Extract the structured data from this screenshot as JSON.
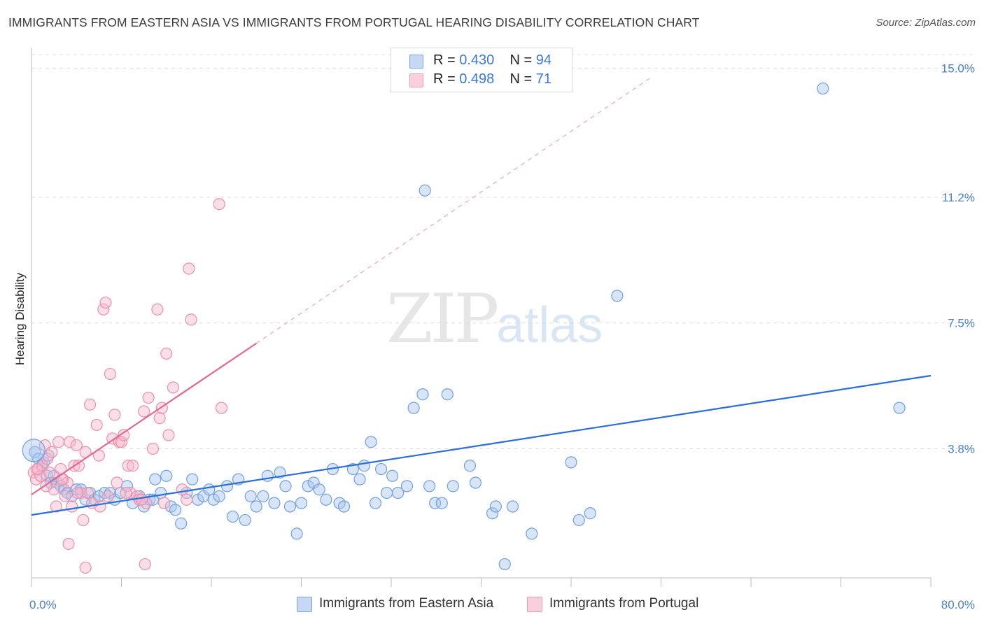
{
  "title": "IMMIGRANTS FROM EASTERN ASIA VS IMMIGRANTS FROM PORTUGAL HEARING DISABILITY CORRELATION CHART",
  "source": "Source: ZipAtlas.com",
  "watermark": {
    "zip": "ZIP",
    "atlas": "atlas"
  },
  "legend_top": [
    {
      "r_label": "R =",
      "r_value": "0.430",
      "n_label": "N =",
      "n_value": "94",
      "color": "#a8c6f0"
    },
    {
      "r_label": "R =",
      "r_value": "0.498",
      "n_label": "N =",
      "n_value": "71",
      "color": "#f6b9cb"
    }
  ],
  "chart_data": {
    "type": "scatter",
    "title": "IMMIGRANTS FROM EASTERN ASIA VS IMMIGRANTS FROM PORTUGAL HEARING DISABILITY CORRELATION CHART",
    "xlabel": "",
    "ylabel": "Hearing Disability",
    "xlim": [
      0,
      80
    ],
    "ylim": [
      0,
      15.4
    ],
    "x_tick_labels": [
      "0.0%",
      "80.0%"
    ],
    "y_ticks": [
      3.8,
      7.5,
      11.2,
      15.0
    ],
    "y_tick_labels": [
      "3.8%",
      "7.5%",
      "11.2%",
      "15.0%"
    ],
    "grid": true,
    "legend": "bottom-center",
    "series": [
      {
        "name": "Immigrants from Eastern Asia",
        "color": "#6fa0e0",
        "fill": "#a8c6f0",
        "trend": {
          "x": [
            0,
            80
          ],
          "y": [
            1.85,
            5.95
          ],
          "color": "#2a6fd6"
        },
        "points": [
          [
            0.3,
            3.7
          ],
          [
            0.6,
            3.5
          ],
          [
            0.9,
            3.3
          ],
          [
            1.1,
            3.4
          ],
          [
            1.4,
            3.0
          ],
          [
            1.7,
            2.8
          ],
          [
            2.0,
            3.0
          ],
          [
            2.3,
            2.8
          ],
          [
            2.6,
            2.7
          ],
          [
            2.9,
            2.6
          ],
          [
            3.2,
            2.5
          ],
          [
            3.6,
            2.4
          ],
          [
            4.0,
            2.6
          ],
          [
            4.4,
            2.6
          ],
          [
            4.8,
            2.3
          ],
          [
            5.2,
            2.5
          ],
          [
            5.6,
            2.3
          ],
          [
            6.0,
            2.4
          ],
          [
            6.5,
            2.5
          ],
          [
            7.0,
            2.5
          ],
          [
            7.4,
            2.3
          ],
          [
            7.9,
            2.5
          ],
          [
            8.5,
            2.7
          ],
          [
            9.0,
            2.2
          ],
          [
            9.6,
            2.4
          ],
          [
            10.0,
            2.1
          ],
          [
            10.5,
            2.3
          ],
          [
            11.0,
            2.9
          ],
          [
            11.5,
            2.5
          ],
          [
            12.0,
            3.0
          ],
          [
            12.4,
            2.1
          ],
          [
            12.8,
            2.0
          ],
          [
            13.3,
            1.6
          ],
          [
            13.8,
            2.5
          ],
          [
            14.3,
            2.9
          ],
          [
            14.8,
            2.3
          ],
          [
            15.3,
            2.4
          ],
          [
            15.8,
            2.6
          ],
          [
            16.2,
            2.3
          ],
          [
            16.7,
            2.4
          ],
          [
            17.4,
            2.7
          ],
          [
            17.9,
            1.8
          ],
          [
            18.4,
            2.9
          ],
          [
            19.0,
            1.7
          ],
          [
            19.5,
            2.4
          ],
          [
            20.0,
            2.1
          ],
          [
            20.6,
            2.4
          ],
          [
            21.0,
            3.0
          ],
          [
            21.6,
            2.2
          ],
          [
            22.1,
            3.1
          ],
          [
            22.6,
            2.7
          ],
          [
            23.0,
            2.1
          ],
          [
            23.6,
            1.3
          ],
          [
            24.0,
            2.2
          ],
          [
            24.6,
            2.7
          ],
          [
            25.1,
            2.8
          ],
          [
            25.6,
            2.6
          ],
          [
            26.2,
            2.3
          ],
          [
            26.8,
            3.2
          ],
          [
            27.4,
            2.2
          ],
          [
            27.8,
            2.1
          ],
          [
            28.6,
            3.2
          ],
          [
            29.2,
            2.9
          ],
          [
            29.6,
            3.3
          ],
          [
            30.2,
            4.0
          ],
          [
            30.6,
            2.2
          ],
          [
            31.1,
            3.2
          ],
          [
            31.6,
            2.5
          ],
          [
            32.1,
            3.0
          ],
          [
            32.6,
            2.5
          ],
          [
            33.4,
            2.7
          ],
          [
            34.0,
            5.0
          ],
          [
            34.8,
            5.4
          ],
          [
            35.4,
            2.7
          ],
          [
            35.9,
            2.2
          ],
          [
            37.0,
            5.4
          ],
          [
            37.5,
            2.7
          ],
          [
            36.5,
            2.2
          ],
          [
            35.0,
            11.4
          ],
          [
            39.0,
            3.3
          ],
          [
            39.5,
            2.8
          ],
          [
            41.0,
            1.9
          ],
          [
            41.3,
            2.1
          ],
          [
            42.1,
            0.4
          ],
          [
            42.8,
            2.1
          ],
          [
            44.5,
            1.3
          ],
          [
            48.0,
            3.4
          ],
          [
            48.7,
            1.7
          ],
          [
            49.7,
            1.9
          ],
          [
            52.1,
            8.3
          ],
          [
            70.4,
            14.4
          ],
          [
            77.2,
            5.0
          ],
          [
            1.5,
            3.6
          ],
          [
            10.8,
            2.3
          ]
        ]
      },
      {
        "name": "Immigrants from Portugal",
        "color": "#ec8fab",
        "fill": "#f6b9cb",
        "trend": {
          "x": [
            0,
            20.0
          ],
          "y": [
            2.45,
            6.9
          ],
          "color": "#e4678f",
          "dashed_extension": {
            "x": [
              20.0,
              55.0
            ],
            "y": [
              6.9,
              14.7
            ]
          }
        },
        "points": [
          [
            0.2,
            3.1
          ],
          [
            0.4,
            2.9
          ],
          [
            0.6,
            3.2
          ],
          [
            0.8,
            3.0
          ],
          [
            1.0,
            3.3
          ],
          [
            1.2,
            3.9
          ],
          [
            1.4,
            3.5
          ],
          [
            1.6,
            3.1
          ],
          [
            1.8,
            3.7
          ],
          [
            2.0,
            2.6
          ],
          [
            2.2,
            2.1
          ],
          [
            2.4,
            4.0
          ],
          [
            2.6,
            3.2
          ],
          [
            2.8,
            2.9
          ],
          [
            3.0,
            2.4
          ],
          [
            3.2,
            2.8
          ],
          [
            3.4,
            4.0
          ],
          [
            3.6,
            2.1
          ],
          [
            3.8,
            3.3
          ],
          [
            4.0,
            3.9
          ],
          [
            4.2,
            3.3
          ],
          [
            4.4,
            2.5
          ],
          [
            4.6,
            1.7
          ],
          [
            4.8,
            3.7
          ],
          [
            5.0,
            2.5
          ],
          [
            5.2,
            5.1
          ],
          [
            5.4,
            2.2
          ],
          [
            5.8,
            4.5
          ],
          [
            6.0,
            3.6
          ],
          [
            6.4,
            7.9
          ],
          [
            6.6,
            8.1
          ],
          [
            6.8,
            2.4
          ],
          [
            7.0,
            6.0
          ],
          [
            7.2,
            4.1
          ],
          [
            7.4,
            4.8
          ],
          [
            7.6,
            2.8
          ],
          [
            7.8,
            4.0
          ],
          [
            8.0,
            4.0
          ],
          [
            8.2,
            4.2
          ],
          [
            8.6,
            3.3
          ],
          [
            8.8,
            2.5
          ],
          [
            9.0,
            3.3
          ],
          [
            9.4,
            2.4
          ],
          [
            9.6,
            2.3
          ],
          [
            10.0,
            4.9
          ],
          [
            10.2,
            2.2
          ],
          [
            10.4,
            5.3
          ],
          [
            10.8,
            3.8
          ],
          [
            11.2,
            7.9
          ],
          [
            11.4,
            4.7
          ],
          [
            11.6,
            5.0
          ],
          [
            11.8,
            2.2
          ],
          [
            12.0,
            6.6
          ],
          [
            12.2,
            4.2
          ],
          [
            12.6,
            5.6
          ],
          [
            13.4,
            2.6
          ],
          [
            13.8,
            2.3
          ],
          [
            14.0,
            9.1
          ],
          [
            14.2,
            7.6
          ],
          [
            16.7,
            11.0
          ],
          [
            16.9,
            5.0
          ],
          [
            4.8,
            0.3
          ],
          [
            10.1,
            0.4
          ],
          [
            3.3,
            1.0
          ],
          [
            0.5,
            3.2
          ],
          [
            1.3,
            2.7
          ],
          [
            2.7,
            2.9
          ],
          [
            4.1,
            2.5
          ],
          [
            6.1,
            2.1
          ],
          [
            8.4,
            2.5
          ],
          [
            9.8,
            2.3
          ]
        ]
      }
    ]
  },
  "bottom_legend": [
    {
      "label": "Immigrants from Eastern Asia",
      "color": "#a8c6f0"
    },
    {
      "label": "Immigrants from Portugal",
      "color": "#f6b9cb"
    }
  ]
}
